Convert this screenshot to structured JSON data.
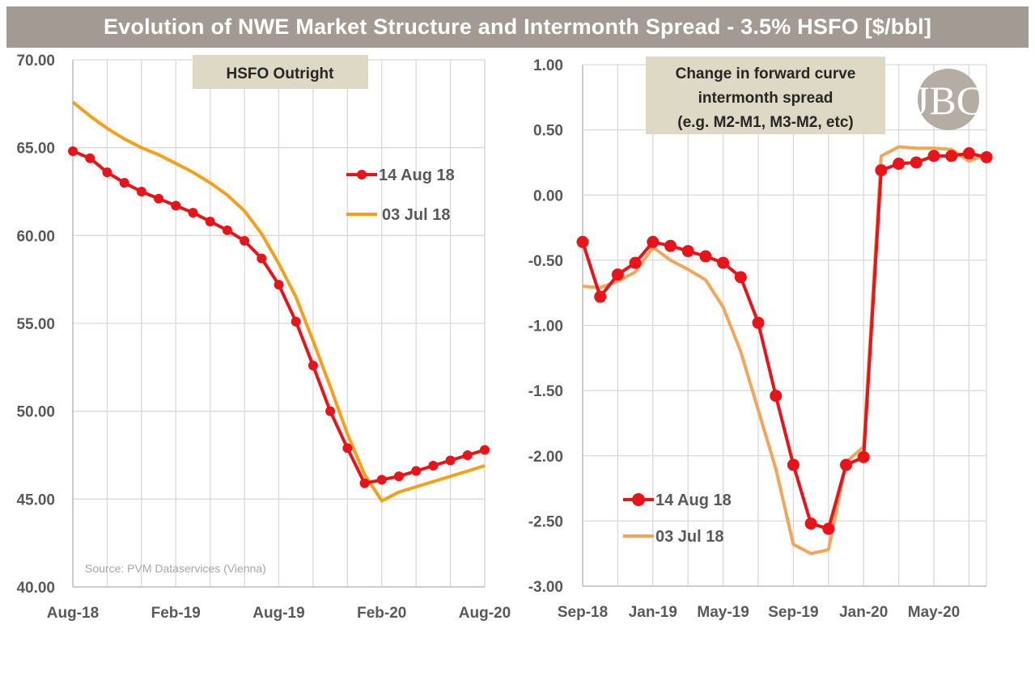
{
  "title": "Evolution of NWE Market Structure and Intermonth Spread - 3.5% HSFO [$/bbl]",
  "colors": {
    "red": "#e8141a",
    "orange": "#f5a017",
    "orange_light": "#f3a55a",
    "grid": "#d9d9d9",
    "title_bg": "#a39b93",
    "box_bg": "#ddd9c4"
  },
  "logo_text": "JBC",
  "chart_data": [
    {
      "type": "line",
      "title": "HSFO Outright",
      "source": "Source: PVM Dataservices (Vienna)",
      "x_count": 25,
      "x_ticks": [
        {
          "i": 0,
          "label": "Aug-18"
        },
        {
          "i": 6,
          "label": "Feb-19"
        },
        {
          "i": 12,
          "label": "Aug-19"
        },
        {
          "i": 18,
          "label": "Feb-20"
        },
        {
          "i": 24,
          "label": "Aug-20"
        }
      ],
      "ylim": [
        40,
        70
      ],
      "y_ticks": [
        40,
        45,
        50,
        55,
        60,
        65,
        70
      ],
      "y_decimals": 2,
      "series": [
        {
          "name": "14 Aug 18",
          "color": "#e8141a",
          "marker": true,
          "values": [
            64.8,
            64.4,
            63.6,
            63.0,
            62.5,
            62.1,
            61.7,
            61.3,
            60.8,
            60.3,
            59.7,
            58.7,
            57.2,
            55.1,
            52.6,
            50.0,
            47.9,
            45.9,
            46.1,
            46.3,
            46.6,
            46.9,
            47.2,
            47.5,
            47.8
          ]
        },
        {
          "name": "03 Jul 18",
          "color": "#f5a017",
          "marker": false,
          "start": 0,
          "end": 24,
          "values": [
            67.6,
            66.8,
            66.1,
            65.5,
            65.0,
            64.6,
            64.1,
            63.6,
            63.0,
            62.3,
            61.4,
            60.1,
            58.4,
            56.5,
            54.0,
            51.4,
            48.7,
            46.4,
            44.9,
            45.4,
            45.7,
            46.0,
            46.3,
            46.6,
            46.9
          ]
        }
      ]
    },
    {
      "type": "line",
      "title": "Change in forward curve intermonth spread (e.g. M2-M1, M3-M2, etc)",
      "title_lines": [
        "Change in forward curve",
        "intermonth spread",
        "(e.g. M2-M1, M3-M2, etc)"
      ],
      "x_count": 24,
      "x_ticks": [
        {
          "i": 0,
          "label": "Sep-18"
        },
        {
          "i": 4,
          "label": "Jan-19"
        },
        {
          "i": 8,
          "label": "May-19"
        },
        {
          "i": 12,
          "label": "Sep-19"
        },
        {
          "i": 16,
          "label": "Jan-20"
        },
        {
          "i": 20,
          "label": "May-20"
        }
      ],
      "ylim": [
        -3.0,
        1.0
      ],
      "y_ticks": [
        -3.0,
        -2.5,
        -2.0,
        -1.5,
        -1.0,
        -0.5,
        0.0,
        0.5,
        1.0
      ],
      "y_decimals": 2,
      "series": [
        {
          "name": "14 Aug 18",
          "color": "#e8141a",
          "marker": true,
          "values": [
            -0.36,
            -0.78,
            -0.61,
            -0.52,
            -0.36,
            -0.39,
            -0.43,
            -0.47,
            -0.52,
            -0.63,
            -0.98,
            -1.54,
            -2.07,
            -2.52,
            -2.56,
            -2.07,
            -2.01,
            0.19,
            0.24,
            0.25,
            0.3,
            0.3,
            0.32,
            0.29
          ]
        },
        {
          "name": "03 Jul 18",
          "color": "#f3a55a",
          "marker": false,
          "values": [
            -0.7,
            -0.71,
            -0.66,
            -0.59,
            -0.4,
            -0.5,
            -0.57,
            -0.65,
            -0.86,
            -1.2,
            -1.65,
            -2.1,
            -2.68,
            -2.75,
            -2.72,
            -2.05,
            -1.93,
            0.3,
            0.37,
            0.36,
            0.36,
            0.35,
            0.26,
            0.31
          ]
        }
      ]
    }
  ]
}
